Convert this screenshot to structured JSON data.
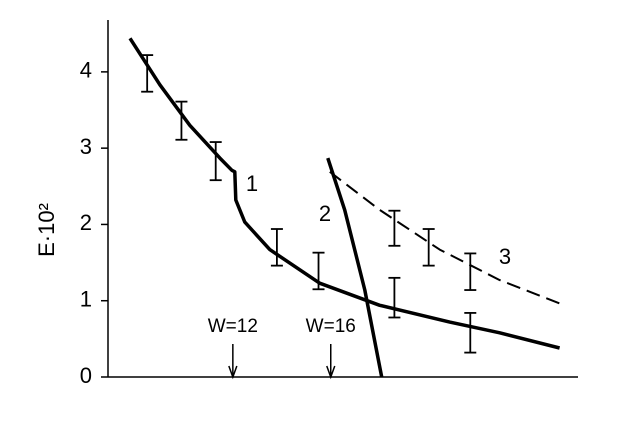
{
  "chart_data": {
    "type": "line",
    "y_label": "E·10²",
    "xlim": [
      6.9,
      26.1
    ],
    "ylim": [
      0,
      4.68
    ],
    "yticks": [
      0,
      1,
      2,
      3,
      4
    ],
    "series": [
      {
        "name": "1",
        "color": "#000000",
        "dashed": false,
        "x": [
          7.8,
          9.02,
          10.24,
          11.47,
          11.96,
          12.08,
          12.12,
          12.49,
          13.51,
          15.55,
          18.0,
          20.86,
          22.9,
          25.35
        ],
        "values": [
          4.44,
          3.83,
          3.3,
          2.87,
          2.71,
          2.69,
          2.32,
          2.03,
          1.67,
          1.23,
          0.94,
          0.72,
          0.58,
          0.38
        ]
      },
      {
        "name": "2",
        "color": "#000000",
        "dashed": false,
        "x": [
          15.88,
          16.57,
          17.39,
          18.08
        ],
        "values": [
          2.87,
          2.19,
          1.14,
          0
        ]
      },
      {
        "name": "3",
        "color": "#000000",
        "dashed": true,
        "x": [
          15.96,
          18.0,
          20.45,
          22.9,
          25.55
        ],
        "values": [
          2.69,
          2.19,
          1.67,
          1.27,
          0.94
        ]
      }
    ],
    "error_bars": {
      "color": "#000000",
      "x": [
        8.5,
        9.9,
        11.3,
        13.8,
        15.5,
        18.6,
        18.6,
        20.0,
        21.7,
        21.7
      ],
      "values": [
        3.98,
        3.36,
        2.83,
        1.7,
        1.39,
        1.04,
        1.95,
        1.7,
        1.38,
        0.58
      ],
      "errors": [
        0.24,
        0.25,
        0.25,
        0.24,
        0.24,
        0.26,
        0.23,
        0.24,
        0.24,
        0.26
      ]
    },
    "annotations": [
      {
        "text": "W=12",
        "x": 12
      },
      {
        "text": "W=16",
        "x": 16
      }
    ]
  }
}
